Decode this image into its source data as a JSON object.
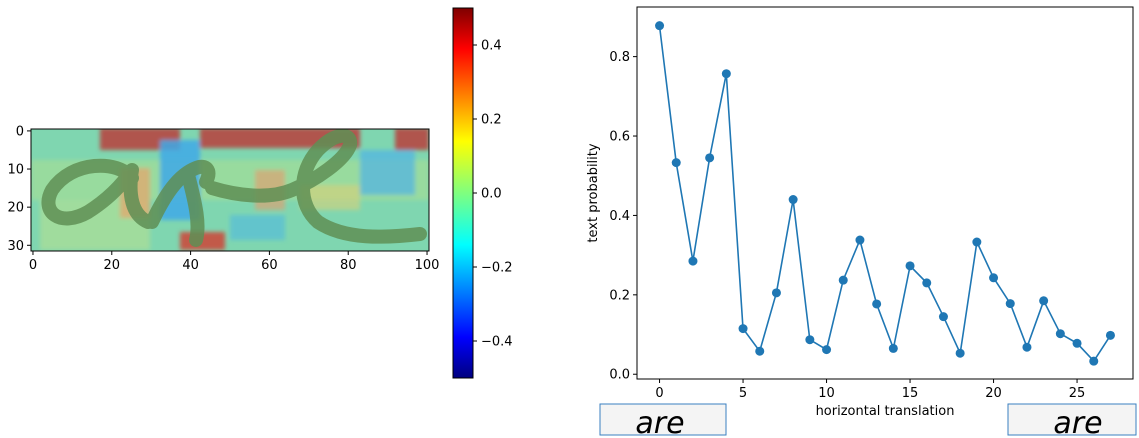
{
  "chart_data": [
    {
      "type": "heatmap",
      "title": "",
      "xlabel": "",
      "ylabel": "",
      "x_ticks": [
        0,
        20,
        40,
        60,
        80,
        100
      ],
      "y_ticks": [
        0,
        10,
        20,
        30
      ],
      "xlim": [
        0,
        101
      ],
      "ylim": [
        32,
        0
      ],
      "colorbar": {
        "colormap": "jet",
        "ticks": [
          0.4,
          0.2,
          0.0,
          -0.2,
          -0.4
        ],
        "tick_labels": [
          "0.4",
          "0.2",
          "0.0",
          "−0.2",
          "−0.4"
        ],
        "range": [
          -0.5,
          0.5
        ]
      },
      "overlay_text": "are"
    },
    {
      "type": "line",
      "title": "",
      "xlabel": "horizontal translation",
      "ylabel": "text probability",
      "x_ticks": [
        0,
        5,
        10,
        15,
        20,
        25
      ],
      "y_ticks": [
        0.0,
        0.2,
        0.4,
        0.6,
        0.8
      ],
      "y_tick_labels": [
        "0.0",
        "0.2",
        "0.4",
        "0.6",
        "0.8"
      ],
      "xlim": [
        -1.35,
        28.35
      ],
      "ylim": [
        -0.012,
        0.925
      ],
      "grid": false,
      "marker_color": "#1f77b4",
      "series": [
        {
          "x": [
            0,
            1,
            2,
            3,
            4,
            5,
            6,
            7,
            8,
            9,
            10,
            11,
            12,
            13,
            14,
            15,
            16,
            17,
            18,
            19,
            20,
            21,
            22,
            23,
            24,
            25,
            26,
            27
          ],
          "values": [
            0.878,
            0.533,
            0.285,
            0.545,
            0.757,
            0.115,
            0.058,
            0.205,
            0.44,
            0.087,
            0.062,
            0.237,
            0.338,
            0.177,
            0.065,
            0.273,
            0.23,
            0.145,
            0.053,
            0.333,
            0.243,
            0.178,
            0.068,
            0.185,
            0.102,
            0.078,
            0.033,
            0.098
          ]
        }
      ],
      "thumbnails": [
        {
          "text": "are",
          "position": "bottom-left"
        },
        {
          "text": "are",
          "position": "bottom-right"
        }
      ]
    }
  ]
}
